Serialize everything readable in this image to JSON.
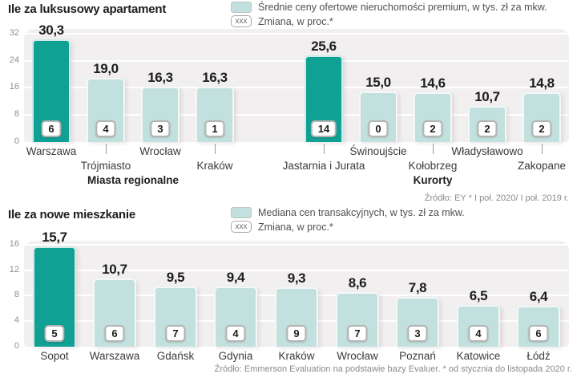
{
  "colors": {
    "highlight_bar": "#10a094",
    "bar_fill": "#c2e0dd",
    "plot_background": "#f2eff0",
    "gridline": "#ffffff",
    "axis_text": "#8f8f8f",
    "heading_text": "#1d1d1b",
    "legend_text": "#50504e",
    "source_text": "#8a8a8a"
  },
  "chart_data": [
    {
      "type": "bar",
      "title": "Ile za luksusowy apartament",
      "legend": [
        {
          "symbol": "swatch",
          "label": "Średnie ceny ofertowe nieruchomości premium, w tys. zł za mkw."
        },
        {
          "symbol": "xxx",
          "label": "Zmiana, w proc.*"
        }
      ],
      "source": "Źródło: EY * I poł. 2020/ I poł. 2019 r.",
      "ylim": [
        0,
        32
      ],
      "yticks": [
        0,
        8,
        16,
        24,
        32
      ],
      "grid": true,
      "legend_position": "top-center",
      "groups": [
        {
          "label": "Miasta regionalne",
          "from_slot": 0,
          "to_slot": 3
        },
        {
          "label": "Kurorty",
          "from_slot": 5,
          "to_slot": 9
        }
      ],
      "bars": [
        {
          "label": "Warszawa",
          "value": 30.3,
          "value_label": "30,3",
          "change": "6",
          "highlight": true,
          "slot": 0,
          "label_row": 1
        },
        {
          "label": "Trójmiasto",
          "value": 19.0,
          "value_label": "19,0",
          "change": "4",
          "highlight": false,
          "slot": 1,
          "label_row": 2
        },
        {
          "label": "Wrocław",
          "value": 16.3,
          "value_label": "16,3",
          "change": "3",
          "highlight": false,
          "slot": 2,
          "label_row": 1
        },
        {
          "label": "Kraków",
          "value": 16.3,
          "value_label": "16,3",
          "change": "1",
          "highlight": false,
          "slot": 3,
          "label_row": 2
        },
        {
          "label": "Jastarnia i Jurata",
          "value": 25.6,
          "value_label": "25,6",
          "change": "14",
          "highlight": true,
          "slot": 5,
          "label_row": 2
        },
        {
          "label": "Świnoujście",
          "value": 15.0,
          "value_label": "15,0",
          "change": "0",
          "highlight": false,
          "slot": 6,
          "label_row": 1
        },
        {
          "label": "Kołobrzeg",
          "value": 14.6,
          "value_label": "14,6",
          "change": "2",
          "highlight": false,
          "slot": 7,
          "label_row": 2
        },
        {
          "label": "Władysławowo",
          "value": 10.7,
          "value_label": "10,7",
          "change": "2",
          "highlight": false,
          "slot": 8,
          "label_row": 1
        },
        {
          "label": "Zakopane",
          "value": 14.8,
          "value_label": "14,8",
          "change": "2",
          "highlight": false,
          "slot": 9,
          "label_row": 2
        }
      ]
    },
    {
      "type": "bar",
      "title": "Ile za nowe mieszkanie",
      "legend": [
        {
          "symbol": "swatch",
          "label": "Mediana cen transakcyjnych, w tys. zł za mkw."
        },
        {
          "symbol": "xxx",
          "label": "Zmiana, w proc.*"
        }
      ],
      "source": "Źródło: Emmerson Evaluation na podstawie bazy Evaluer. * od stycznia do listopada 2020 r.",
      "ylim": [
        0,
        16
      ],
      "yticks": [
        0,
        4,
        8,
        12,
        16
      ],
      "grid": true,
      "legend_position": "top-center",
      "groups": [],
      "bars": [
        {
          "label": "Sopot",
          "value": 15.7,
          "value_label": "15,7",
          "change": "5",
          "highlight": true,
          "slot": 0,
          "label_row": 1
        },
        {
          "label": "Warszawa",
          "value": 10.7,
          "value_label": "10,7",
          "change": "6",
          "highlight": false,
          "slot": 1,
          "label_row": 1
        },
        {
          "label": "Gdańsk",
          "value": 9.5,
          "value_label": "9,5",
          "change": "7",
          "highlight": false,
          "slot": 2,
          "label_row": 1
        },
        {
          "label": "Gdynia",
          "value": 9.4,
          "value_label": "9,4",
          "change": "4",
          "highlight": false,
          "slot": 3,
          "label_row": 1
        },
        {
          "label": "Kraków",
          "value": 9.3,
          "value_label": "9,3",
          "change": "9",
          "highlight": false,
          "slot": 4,
          "label_row": 1
        },
        {
          "label": "Wrocław",
          "value": 8.6,
          "value_label": "8,6",
          "change": "7",
          "highlight": false,
          "slot": 5,
          "label_row": 1
        },
        {
          "label": "Poznań",
          "value": 7.8,
          "value_label": "7,8",
          "change": "3",
          "highlight": false,
          "slot": 6,
          "label_row": 1
        },
        {
          "label": "Katowice",
          "value": 6.5,
          "value_label": "6,5",
          "change": "4",
          "highlight": false,
          "slot": 7,
          "label_row": 1
        },
        {
          "label": "Łódź",
          "value": 6.4,
          "value_label": "6,4",
          "change": "6",
          "highlight": false,
          "slot": 8,
          "label_row": 1
        }
      ]
    }
  ]
}
